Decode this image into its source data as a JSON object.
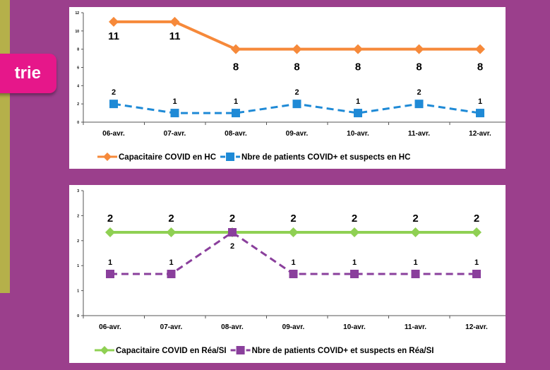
{
  "badge": {
    "label": "trie"
  },
  "chart_data": [
    {
      "type": "line",
      "categories": [
        "06-avr.",
        "07-avr.",
        "08-avr.",
        "09-avr.",
        "10-avr.",
        "11-avr.",
        "12-avr."
      ],
      "ylim": [
        0,
        12
      ],
      "yticks": [
        "0",
        "2",
        "4",
        "6",
        "8",
        "10",
        "12"
      ],
      "grid": false,
      "legend_position": "bottom",
      "series": [
        {
          "name": "Capacitaire COVID en HC",
          "values": [
            11,
            11,
            8,
            8,
            8,
            8,
            8
          ],
          "color": "#f6893a",
          "style": "solid",
          "marker": "diamond",
          "labels": "mixed"
        },
        {
          "name": "Nbre de patients COVID+ et suspects en HC",
          "values": [
            2,
            1,
            1,
            2,
            1,
            2,
            1
          ],
          "color": "#1f8ad6",
          "style": "dashed",
          "marker": "square",
          "labels": "above"
        }
      ]
    },
    {
      "type": "line",
      "categories": [
        "06-avr.",
        "07-avr.",
        "08-avr.",
        "09-avr.",
        "10-avr.",
        "11-avr.",
        "12-avr."
      ],
      "ylim": [
        0,
        3
      ],
      "yticks": [
        "0",
        "1",
        "1",
        "2",
        "2",
        "3"
      ],
      "grid": false,
      "legend_position": "bottom",
      "series": [
        {
          "name": "Capacitaire COVID en Réa/SI",
          "values": [
            2,
            2,
            2,
            2,
            2,
            2,
            2
          ],
          "color": "#8fd053",
          "style": "solid",
          "marker": "diamond",
          "labels": "above"
        },
        {
          "name": "Nbre de patients COVID+ et suspects en Réa/SI",
          "values": [
            1,
            1,
            2,
            1,
            1,
            1,
            1
          ],
          "color": "#8a3f9c",
          "style": "dashed",
          "marker": "square",
          "labels": "above_except_peak"
        }
      ]
    }
  ]
}
